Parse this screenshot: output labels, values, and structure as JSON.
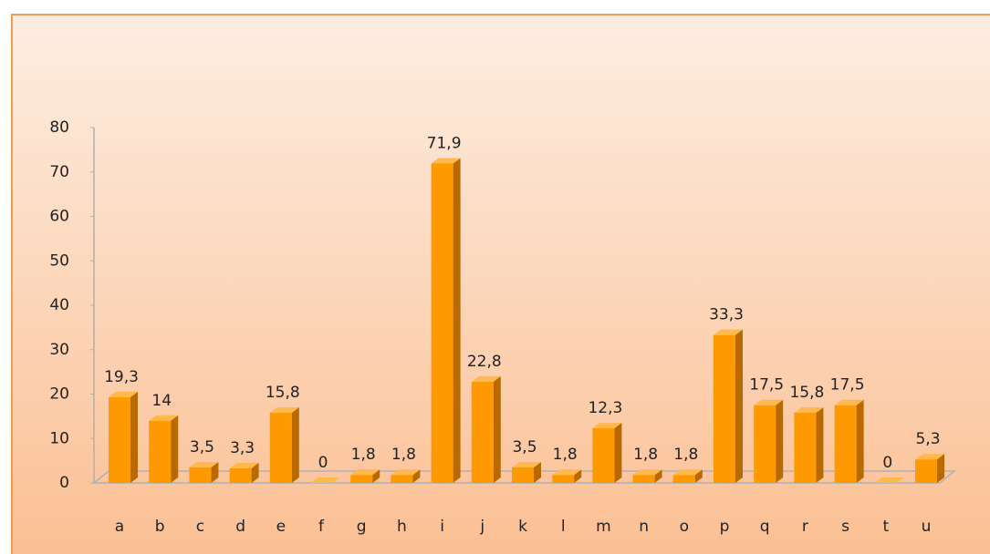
{
  "chart_data": {
    "type": "bar",
    "categories": [
      "a",
      "b",
      "c",
      "d",
      "e",
      "f",
      "g",
      "h",
      "i",
      "j",
      "k",
      "l",
      "m",
      "n",
      "o",
      "p",
      "q",
      "r",
      "s",
      "t",
      "u"
    ],
    "values": [
      19.3,
      14,
      3.5,
      3.3,
      15.8,
      0,
      1.8,
      1.8,
      71.9,
      22.8,
      3.5,
      1.8,
      12.3,
      1.8,
      1.8,
      33.3,
      17.5,
      15.8,
      17.5,
      0,
      5.3
    ],
    "value_labels": [
      "19,3",
      "14",
      "3,5",
      "3,3",
      "15,8",
      "0",
      "1,8",
      "1,8",
      "71,9",
      "22,8",
      "3,5",
      "1,8",
      "12,3",
      "1,8",
      "1,8",
      "33,3",
      "17,5",
      "15,8",
      "17,5",
      "0",
      "5,3"
    ],
    "color": "#ff9900",
    "ylim": [
      0,
      80
    ],
    "yticks": [
      0,
      10,
      20,
      30,
      40,
      50,
      60,
      70,
      80
    ],
    "grid": false
  }
}
